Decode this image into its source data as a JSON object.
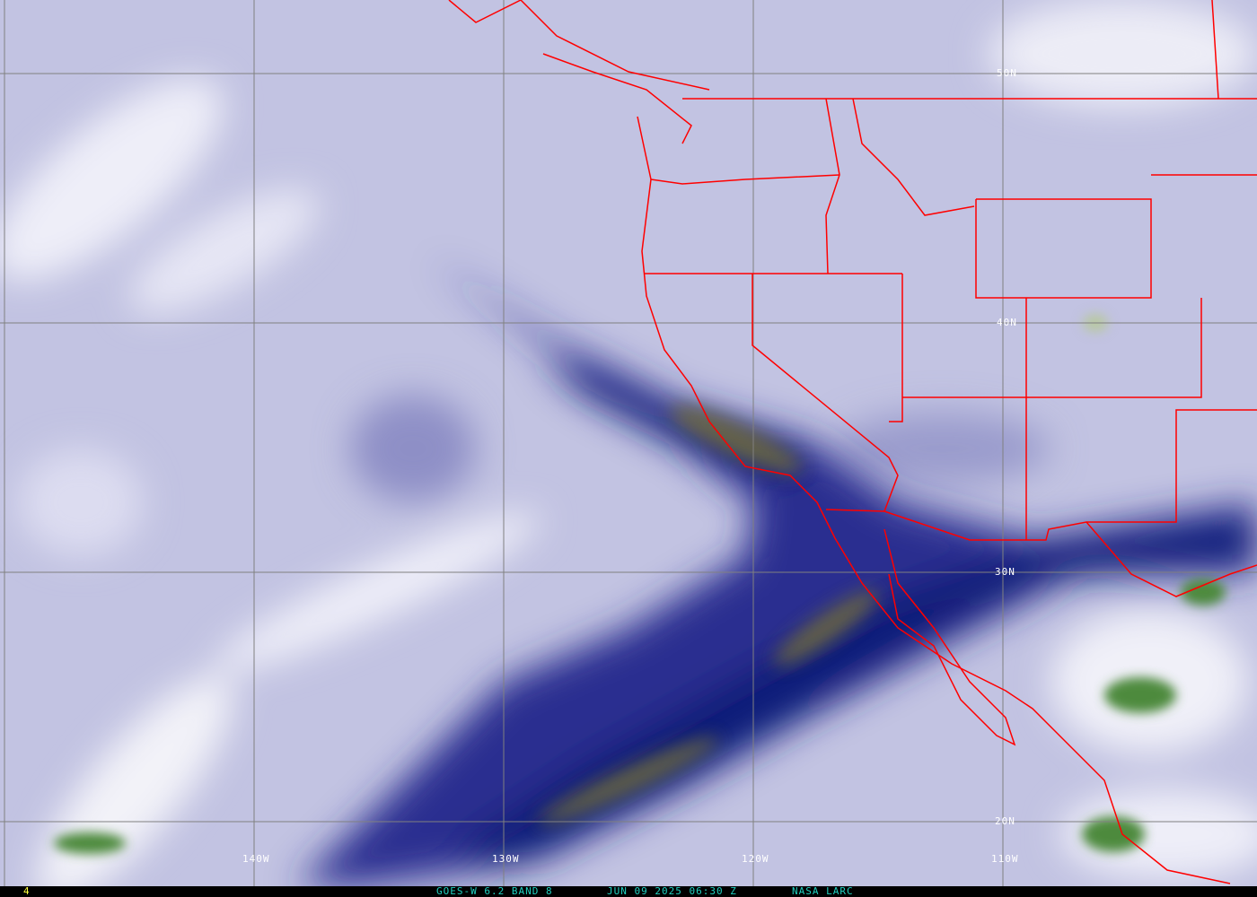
{
  "image": {
    "satellite": "GOES-W",
    "channel": "6.2",
    "band": "BAND 8",
    "caption": "GOES-W 6.2 BAND 8",
    "datetime": "JUN 09 2025 06:30 Z",
    "credit": "NASA LARC",
    "frame_number": "4"
  },
  "grid": {
    "latitude_labels": [
      "50N",
      "40N",
      "30N",
      "20N"
    ],
    "longitude_labels": [
      "140W",
      "130W",
      "120W",
      "110W"
    ]
  },
  "colors": {
    "background_moist": "#c9cae6",
    "dry_band": "#101a78",
    "very_dry": "#6e6a3c",
    "cloud_tops": "#f4f4fa",
    "cold_cloud": "#4d8a3e",
    "borders": "#ff0000",
    "grid": "#808080",
    "caption": "#20d0c0",
    "frame_number": "#ffff40"
  }
}
